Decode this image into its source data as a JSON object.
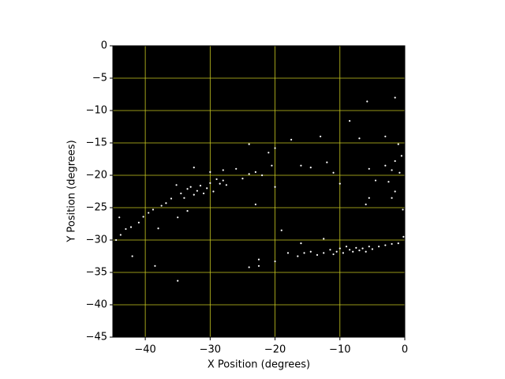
{
  "chart_data": {
    "type": "scatter",
    "xlabel": "X Position (degrees)",
    "ylabel": "Y Position (degrees)",
    "xlim": [
      -45,
      0
    ],
    "xticks": [
      {
        "value": -40,
        "label": "−40"
      },
      {
        "value": -30,
        "label": "−30"
      },
      {
        "value": -20,
        "label": "−20"
      },
      {
        "value": -10,
        "label": "−10"
      },
      0
    ],
    "ylim": [
      -45,
      0
    ],
    "yticks": [
      0,
      {
        "value": -5,
        "label": "−5"
      },
      {
        "value": -10,
        "label": "−10"
      },
      {
        "value": -15,
        "label": "−15"
      },
      {
        "value": -20,
        "label": "−20"
      },
      {
        "value": -25,
        "label": "−25"
      },
      {
        "value": -30,
        "label": "−30"
      },
      {
        "value": -35,
        "label": "−35"
      },
      {
        "value": -40,
        "label": "−40"
      },
      {
        "value": -45,
        "label": "−45"
      }
    ],
    "grid": true,
    "grid_color": "#c8c820",
    "background": "#000000",
    "color": "#ffffff",
    "x": [
      -44.5,
      -43.8,
      -43,
      -42.2,
      -41,
      -40.3,
      -39.5,
      -38.8,
      -38,
      -37.5,
      -36.8,
      -36,
      -35.2,
      -34.5,
      -34,
      -33.5,
      -33,
      -32.5,
      -32,
      -31.5,
      -31,
      -30.5,
      -30,
      -29.5,
      -29,
      -28.5,
      -28,
      -27.5,
      -32.5,
      -30,
      -28,
      -26,
      -25,
      -24,
      -23,
      -22,
      -44,
      -42,
      -33.5,
      -35,
      -18,
      -16.5,
      -15.5,
      -14.5,
      -13.5,
      -12.5,
      -11.5,
      -11,
      -10.5,
      -10,
      -9.5,
      -9,
      -8.5,
      -8,
      -7.5,
      -7,
      -6.5,
      -6,
      -5.5,
      -5,
      -4,
      -3,
      -2,
      -1,
      -12.5,
      -16,
      -0.5,
      -1,
      -1.5,
      -2,
      -2.5,
      -1.5,
      -2,
      -0.8,
      -3,
      -5.5,
      -4.5,
      -5.5,
      -6,
      -7,
      -3,
      -0.3,
      -1.5,
      -5.8,
      -8.5,
      -0.2,
      -24,
      -20,
      -17.5,
      -16,
      -14.5,
      -13,
      -12,
      -11,
      -10,
      -20.5,
      -21,
      -20,
      -35,
      -24,
      -22.5,
      -22.5,
      -20,
      -19,
      -23,
      -38.5
    ],
    "values": [
      -30,
      -29.2,
      -28.3,
      -28,
      -27.3,
      -26.4,
      -25.8,
      -25.3,
      -28.2,
      -24.7,
      -24.3,
      -23.6,
      -21.5,
      -22.8,
      -23.5,
      -22.1,
      -21.8,
      -23,
      -22.4,
      -21.6,
      -22.8,
      -22,
      -21.2,
      -22.5,
      -20.6,
      -21.3,
      -20.8,
      -21.5,
      -18.8,
      -19.5,
      -19.2,
      -19,
      -20.5,
      -19.8,
      -19.5,
      -20,
      -26.5,
      -32.5,
      -25.5,
      -26.5,
      -32,
      -32.5,
      -32,
      -31.8,
      -32.3,
      -32,
      -31.5,
      -32.2,
      -31.8,
      -31.3,
      -32,
      -31,
      -31.5,
      -31.8,
      -31.2,
      -31.6,
      -31.3,
      -31.8,
      -31,
      -31.4,
      -31,
      -30.8,
      -30.6,
      -30.5,
      -29.8,
      -30.5,
      -17,
      -15.2,
      -17.8,
      -19.2,
      -21,
      -22.5,
      -23.5,
      -19.6,
      -18.5,
      -19,
      -20.8,
      -23.5,
      -24.5,
      -14.3,
      -14,
      -25.3,
      -8,
      -8.6,
      -11.6,
      -29.5,
      -15.2,
      -15.8,
      -14.5,
      -18.5,
      -18.8,
      -14,
      -18,
      -19.6,
      -21.3,
      -18.5,
      -16.5,
      -21.8,
      -36.3,
      -34.2,
      -34,
      -33,
      -33.3,
      -28.5,
      -24.5,
      -34
    ]
  }
}
